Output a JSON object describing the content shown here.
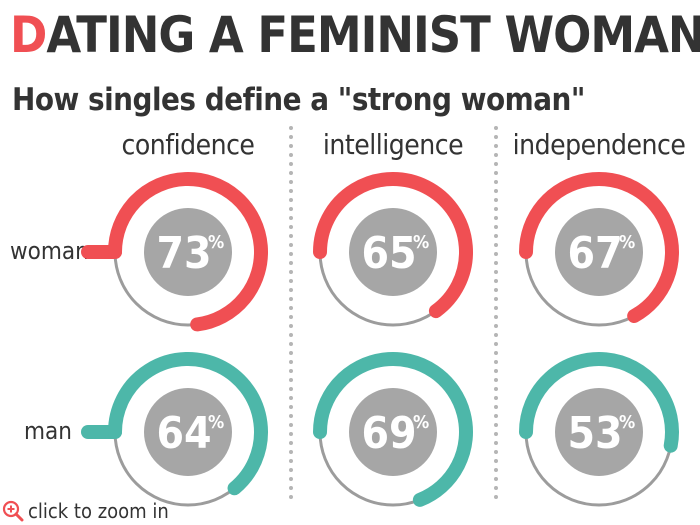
{
  "title_first": "D",
  "title_rest": "ATING A FEMINIST WOMAN",
  "subtitle": "How singles define a \"strong woman\"",
  "zoom_text": "click to zoom in",
  "colors": {
    "woman": "#f04f53",
    "man": "#4db7a9",
    "track": "#9c9c9c",
    "center": "#a6a6a6",
    "divider": "#b5b5b5"
  },
  "chart_data": {
    "type": "donut",
    "categories": [
      "confidence",
      "intelligence",
      "independence"
    ],
    "unit": "%",
    "series": [
      {
        "name": "woman",
        "values": [
          73,
          65,
          67
        ]
      },
      {
        "name": "man",
        "values": [
          64,
          69,
          53
        ]
      }
    ]
  }
}
